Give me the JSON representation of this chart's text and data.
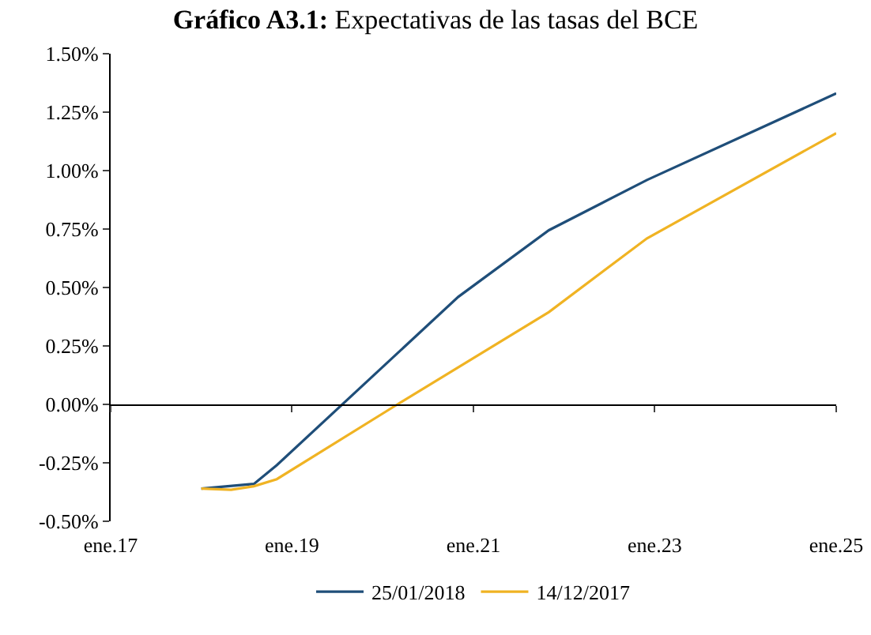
{
  "chart_data": {
    "type": "line",
    "title": "Gráfico A3.1: Expectativas de las tasas del BCE",
    "xlim": [
      "2017-01-01",
      "2025-01-01"
    ],
    "xticks": [
      {
        "value": "2017-01-01",
        "label": "ene.17"
      },
      {
        "value": "2019-01-01",
        "label": "ene.19"
      },
      {
        "value": "2021-01-01",
        "label": "ene.21"
      },
      {
        "value": "2023-01-01",
        "label": "ene.23"
      },
      {
        "value": "2025-01-01",
        "label": "ene.25"
      }
    ],
    "ylim": [
      -0.5,
      1.5
    ],
    "yticks": [
      {
        "value": -0.5,
        "label": "-0.50%"
      },
      {
        "value": -0.25,
        "label": "-0.25%"
      },
      {
        "value": 0,
        "label": "0.00%"
      },
      {
        "value": 0.25,
        "label": "0.25%"
      },
      {
        "value": 0.5,
        "label": "0.50%"
      },
      {
        "value": 0.75,
        "label": "0.75%"
      },
      {
        "value": 1.0,
        "label": "1.00%"
      },
      {
        "value": 1.25,
        "label": "1.25%"
      },
      {
        "value": 1.5,
        "label": "1.50%"
      }
    ],
    "legend": "bottom",
    "marker": "none",
    "line_style": "solid",
    "series": [
      {
        "name": "25/01/2018",
        "color": "#1f4e79",
        "x": [
          "2018-01",
          "2018-08",
          "2018-11",
          "2020-11",
          "2021-11",
          "2022-12",
          "2025-01"
        ],
        "values": [
          -0.36,
          -0.34,
          -0.26,
          0.46,
          0.745,
          0.96,
          1.33
        ]
      },
      {
        "name": "14/12/2017",
        "color": "#f0b323",
        "x": [
          "2018-01",
          "2018-05",
          "2018-08",
          "2018-11",
          "2020-03",
          "2021-11",
          "2022-12",
          "2025-01"
        ],
        "values": [
          -0.36,
          -0.365,
          -0.35,
          -0.32,
          0.0,
          0.395,
          0.71,
          1.16
        ]
      }
    ]
  }
}
